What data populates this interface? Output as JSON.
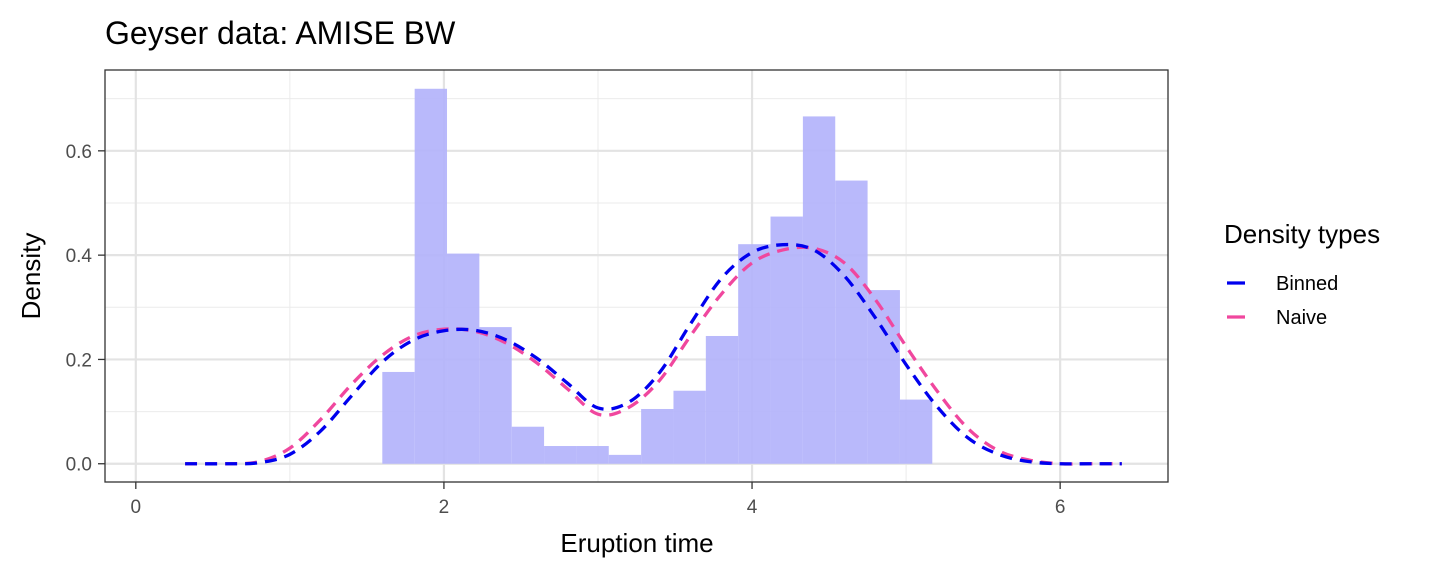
{
  "chart_data": {
    "type": "histogram-line",
    "title": "Geyser data: AMISE BW",
    "xlabel": "Eruption time",
    "ylabel": "Density",
    "xlim": [
      -0.2,
      6.7
    ],
    "ylim": [
      -0.035,
      0.755
    ],
    "xticks": [
      0,
      2,
      4,
      6
    ],
    "xtick_labels": [
      "0",
      "2",
      "4",
      "6"
    ],
    "yticks": [
      0.0,
      0.2,
      0.4,
      0.6
    ],
    "ytick_labels": [
      "0.0",
      "0.2",
      "0.4",
      "0.6"
    ],
    "grid": true,
    "histogram": {
      "color": "#b3b3fb",
      "bins": [
        {
          "x0": 1.6,
          "x1": 1.81,
          "y": 0.176
        },
        {
          "x0": 1.81,
          "x1": 2.02,
          "y": 0.719
        },
        {
          "x0": 2.02,
          "x1": 2.23,
          "y": 0.403
        },
        {
          "x0": 2.23,
          "x1": 2.44,
          "y": 0.262
        },
        {
          "x0": 2.44,
          "x1": 2.65,
          "y": 0.071
        },
        {
          "x0": 2.65,
          "x1": 2.86,
          "y": 0.034
        },
        {
          "x0": 2.86,
          "x1": 3.07,
          "y": 0.034
        },
        {
          "x0": 3.07,
          "x1": 3.28,
          "y": 0.017
        },
        {
          "x0": 3.28,
          "x1": 3.49,
          "y": 0.105
        },
        {
          "x0": 3.49,
          "x1": 3.7,
          "y": 0.14
        },
        {
          "x0": 3.7,
          "x1": 3.91,
          "y": 0.245
        },
        {
          "x0": 3.91,
          "x1": 4.12,
          "y": 0.421
        },
        {
          "x0": 4.12,
          "x1": 4.33,
          "y": 0.474
        },
        {
          "x0": 4.33,
          "x1": 4.54,
          "y": 0.666
        },
        {
          "x0": 4.54,
          "x1": 4.75,
          "y": 0.543
        },
        {
          "x0": 4.75,
          "x1": 4.96,
          "y": 0.333
        },
        {
          "x0": 4.96,
          "x1": 5.17,
          "y": 0.123
        }
      ]
    },
    "series": [
      {
        "name": "Binned",
        "color": "#0000ee",
        "style": "dashed",
        "x": [
          0.32,
          0.6,
          0.8,
          1.0,
          1.2,
          1.4,
          1.6,
          1.8,
          2.0,
          2.2,
          2.4,
          2.6,
          2.8,
          3.0,
          3.2,
          3.4,
          3.6,
          3.8,
          4.0,
          4.2,
          4.4,
          4.6,
          4.8,
          5.0,
          5.2,
          5.4,
          5.6,
          5.8,
          6.0,
          6.2,
          6.4
        ],
        "y": [
          0.0,
          0.0,
          0.002,
          0.018,
          0.063,
          0.13,
          0.195,
          0.237,
          0.255,
          0.256,
          0.238,
          0.203,
          0.155,
          0.107,
          0.118,
          0.175,
          0.268,
          0.355,
          0.405,
          0.42,
          0.41,
          0.36,
          0.28,
          0.19,
          0.11,
          0.05,
          0.018,
          0.004,
          0.0,
          0.0,
          0.0
        ]
      },
      {
        "name": "Naive",
        "color": "#f0479e",
        "style": "dashed",
        "x": [
          0.32,
          0.6,
          0.8,
          1.0,
          1.2,
          1.4,
          1.6,
          1.8,
          2.0,
          2.2,
          2.4,
          2.6,
          2.8,
          3.0,
          3.2,
          3.4,
          3.6,
          3.8,
          4.0,
          4.2,
          4.4,
          4.6,
          4.8,
          5.0,
          5.2,
          5.4,
          5.6,
          5.8,
          6.0,
          6.2,
          6.4
        ],
        "y": [
          0.0,
          0.0,
          0.004,
          0.03,
          0.085,
          0.152,
          0.208,
          0.245,
          0.258,
          0.254,
          0.232,
          0.194,
          0.144,
          0.095,
          0.108,
          0.16,
          0.245,
          0.325,
          0.385,
          0.41,
          0.413,
          0.385,
          0.315,
          0.225,
          0.14,
          0.068,
          0.025,
          0.007,
          0.0,
          0.0,
          0.0
        ]
      }
    ],
    "legend": {
      "title": "Density types",
      "position": "right",
      "items": [
        {
          "label": "Binned",
          "color": "#0000ee"
        },
        {
          "label": "Naive",
          "color": "#f0479e"
        }
      ]
    }
  }
}
